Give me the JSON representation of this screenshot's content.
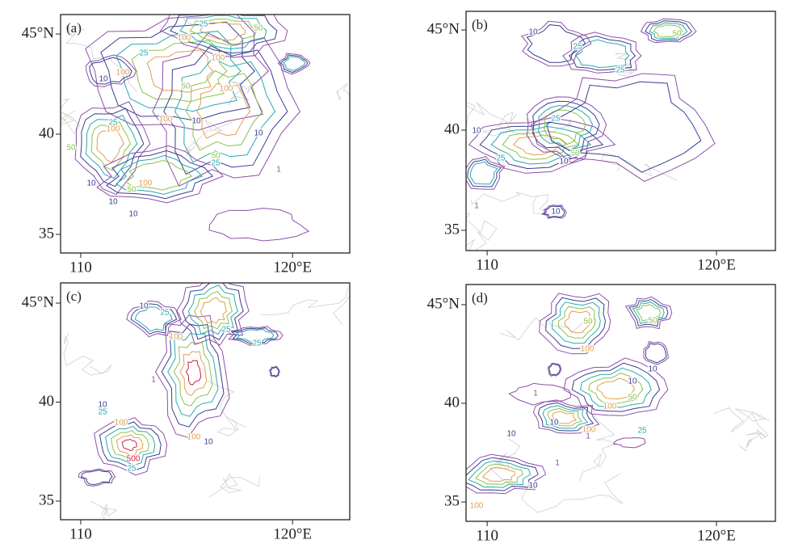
{
  "panels": [
    {
      "label": "(a)",
      "xlim": [
        109.05,
        122.7
      ],
      "ylim": [
        34.07,
        45.97
      ],
      "xticks": [
        110,
        {
          "value": 120,
          "label": "120°E"
        }
      ],
      "yticks": [
        {
          "value": 45,
          "label": "45°N"
        },
        40,
        35
      ],
      "contour_labels": [
        25,
        50,
        100,
        25,
        100,
        10,
        100,
        50,
        100,
        25,
        100,
        50,
        100,
        10,
        10,
        50,
        25,
        100,
        50,
        10,
        10,
        10,
        1
      ]
    },
    {
      "label": "(b)",
      "xlim": [
        109.08,
        122.57
      ],
      "ylim": [
        33.99,
        45.93
      ],
      "xticks": [
        110,
        {
          "value": 120,
          "label": "120°E"
        }
      ],
      "yticks": [
        {
          "value": 45,
          "label": "45°N"
        },
        40,
        35
      ],
      "contour_labels": [
        10,
        25,
        50,
        25,
        10,
        25,
        50,
        25,
        10,
        1,
        10
      ]
    },
    {
      "label": "(c)",
      "xlim": [
        109.05,
        122.7
      ],
      "ylim": [
        34.06,
        46.02
      ],
      "xticks": [
        110,
        {
          "value": 120,
          "label": "120°E"
        }
      ],
      "yticks": [
        {
          "value": 45,
          "label": "45°N"
        },
        40,
        35
      ],
      "contour_labels": [
        10,
        25,
        100,
        25,
        25,
        1,
        10,
        25,
        100,
        100,
        10,
        500,
        25
      ]
    },
    {
      "label": "(d)",
      "xlim": [
        109.08,
        122.57
      ],
      "ylim": [
        34.02,
        46.02
      ],
      "xticks": [
        110,
        {
          "value": 120,
          "label": "120°E"
        }
      ],
      "yticks": [
        {
          "value": 45,
          "label": "45°N"
        },
        40,
        35
      ],
      "contour_labels": [
        50,
        100,
        50,
        10,
        10,
        50,
        100,
        1,
        10,
        100,
        1,
        25,
        10,
        10,
        100,
        1
      ]
    }
  ],
  "levels": [
    1,
    10,
    25,
    50,
    100,
    500
  ],
  "level_colors": [
    "#8e4fa8",
    "#3a3f8f",
    "#2aa9b0",
    "#8bc34a",
    "#e0a050",
    "#d0204a"
  ]
}
